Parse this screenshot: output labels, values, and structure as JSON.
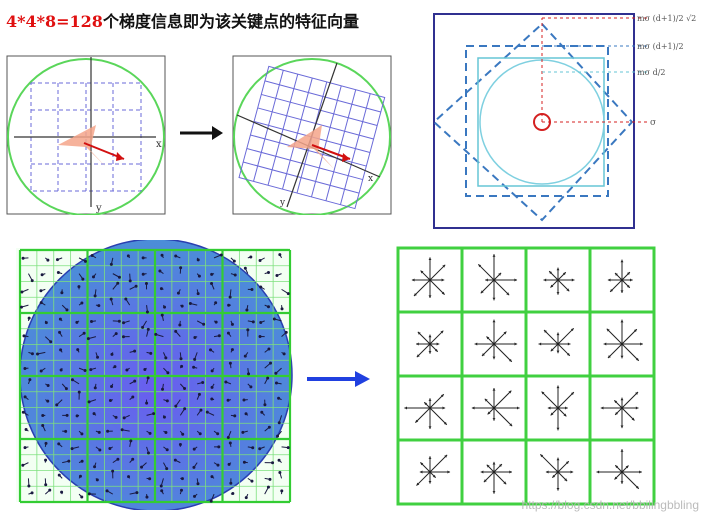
{
  "title": {
    "highlight": "4*4*8=128",
    "rest": "个梯度信息即为该关键点的特征向量"
  },
  "left_diagram": {
    "axis_x": "x",
    "axis_y": "y"
  },
  "right_diagram": {
    "axis_x": "x",
    "axis_y": "y"
  },
  "scale_diagram": {
    "label_1": "mσ (d+1)/2 √2",
    "label_2": "mσ (d+1)/2",
    "label_3": "mσ d/2",
    "label_4": "σ"
  },
  "watermark": "https://blog.csdn.net/bbilingbbling",
  "colors": {
    "title_highlight": "#e01010",
    "green": "#33cc33",
    "blue_frame": "#3030a0",
    "arrow_blue": "#2040e0"
  }
}
